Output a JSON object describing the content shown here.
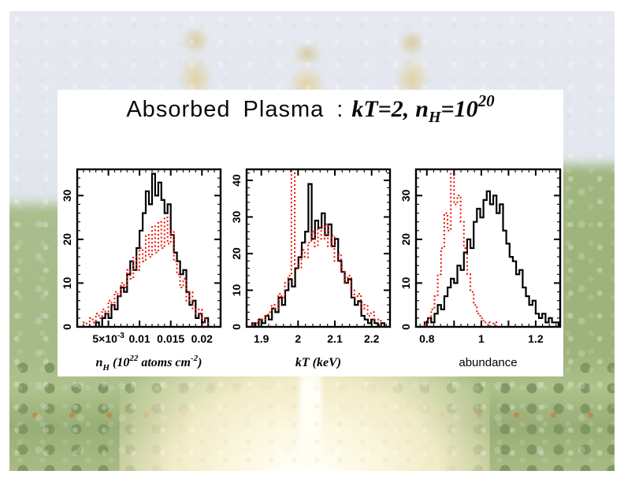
{
  "slide": {
    "title": {
      "prefix": "Absorbed Plasma :",
      "kt": "kT=2,",
      "n": "n",
      "n_sub": "H",
      "eq": "=10",
      "exp": "20"
    }
  },
  "colors": {
    "histogram_black": "#000000",
    "histogram_red": "#ee1100",
    "panel_background": "#ffffff"
  },
  "chart_data": [
    {
      "type": "histogram",
      "style": "step",
      "xlabel_text": "nH (10^22 atoms cm^-2)",
      "xlabel_style": "math",
      "xlabel_parts": [
        {
          "t": "n"
        },
        {
          "t": "H",
          "pos": "sub"
        },
        {
          "t": " (10"
        },
        {
          "t": "22",
          "pos": "sup"
        },
        {
          "t": " atoms cm"
        },
        {
          "t": "-2",
          "pos": "sup"
        },
        {
          "t": ")"
        }
      ],
      "xlim": [
        0,
        0.023
      ],
      "ylim": [
        0,
        36
      ],
      "grid": false,
      "legend": "none",
      "xticks": {
        "minor_step": 0.001,
        "major_step": 0.005,
        "labels": [
          {
            "v": 0.005,
            "main": "5×10",
            "sup": "-3"
          },
          {
            "v": 0.01,
            "main": "0.01"
          },
          {
            "v": 0.015,
            "main": "0.015"
          },
          {
            "v": 0.02,
            "main": "0.02"
          }
        ]
      },
      "yticks": {
        "minor_step": 2,
        "major_step": 10,
        "labels": [
          {
            "v": 0,
            "main": "0"
          },
          {
            "v": 10,
            "main": "10"
          },
          {
            "v": 20,
            "main": "20"
          },
          {
            "v": 30,
            "main": "30"
          }
        ]
      },
      "series": [
        {
          "name": "solid-black-histogram",
          "style": "solid",
          "color": "#000000",
          "x0": 0.0025,
          "dx": 0.0005,
          "values": [
            0,
            1,
            0,
            2,
            3,
            2,
            5,
            4,
            7,
            9,
            8,
            12,
            15,
            13,
            18,
            22,
            26,
            31,
            28,
            35,
            30,
            33,
            29,
            26,
            28,
            21,
            17,
            15,
            12,
            13,
            8,
            5,
            6,
            2,
            3,
            1,
            2,
            0
          ]
        },
        {
          "name": "dotted-red-histogram",
          "style": "dotted",
          "color": "#ee1100",
          "x0": 0.001,
          "dx": 0.0005,
          "values": [
            1,
            0,
            2,
            1,
            3,
            2,
            4,
            3,
            6,
            5,
            8,
            7,
            10,
            9,
            13,
            11,
            16,
            13,
            18,
            15,
            21,
            16,
            23,
            17,
            24,
            18,
            25,
            19,
            22,
            15,
            12,
            9,
            11,
            6,
            8,
            4,
            3,
            4,
            2,
            1
          ]
        }
      ]
    },
    {
      "type": "histogram",
      "style": "step",
      "xlabel_text": "kT (keV)",
      "xlabel_style": "math",
      "xlabel_parts": [
        {
          "t": "kT (keV)"
        }
      ],
      "xlim": [
        1.86,
        2.25
      ],
      "ylim": [
        0,
        43
      ],
      "grid": false,
      "legend": "none",
      "xticks": {
        "minor_step": 0.02,
        "major_step": 0.1,
        "labels": [
          {
            "v": 1.9,
            "main": "1.9"
          },
          {
            "v": 2.0,
            "main": "2"
          },
          {
            "v": 2.1,
            "main": "2.1"
          },
          {
            "v": 2.2,
            "main": "2.2"
          }
        ]
      },
      "yticks": {
        "minor_step": 2,
        "major_step": 10,
        "labels": [
          {
            "v": 0,
            "main": "0"
          },
          {
            "v": 10,
            "main": "10"
          },
          {
            "v": 20,
            "main": "20"
          },
          {
            "v": 30,
            "main": "30"
          },
          {
            "v": 40,
            "main": "40"
          }
        ]
      },
      "series": [
        {
          "name": "solid-black-histogram",
          "style": "solid",
          "color": "#000000",
          "x0": 1.875,
          "dx": 0.009,
          "values": [
            1,
            0,
            2,
            1,
            3,
            2,
            5,
            4,
            8,
            6,
            10,
            13,
            11,
            16,
            19,
            23,
            26,
            39,
            24,
            29,
            27,
            31,
            25,
            28,
            22,
            24,
            18,
            15,
            12,
            13,
            8,
            6,
            7,
            3,
            2,
            1,
            2,
            1,
            0,
            1
          ]
        },
        {
          "name": "dotted-red-histogram",
          "style": "dotted",
          "color": "#ee1100",
          "x0": 1.865,
          "dx": 0.009,
          "values": [
            0,
            1,
            1,
            2,
            2,
            3,
            4,
            6,
            5,
            9,
            8,
            12,
            14,
            45,
            17,
            16,
            21,
            19,
            23,
            26,
            22,
            27,
            24,
            28,
            22,
            25,
            18,
            20,
            15,
            12,
            14,
            10,
            8,
            9,
            5,
            6,
            3,
            4,
            2,
            2
          ]
        }
      ]
    },
    {
      "type": "histogram",
      "style": "step",
      "xlabel_text": "abundance",
      "xlabel_style": "plain",
      "xlabel_parts": [
        {
          "t": "abundance"
        }
      ],
      "xlim": [
        0.76,
        1.29
      ],
      "ylim": [
        0,
        36
      ],
      "grid": false,
      "legend": "none",
      "xticks": {
        "minor_step": 0.025,
        "major_step": 0.1,
        "labels": [
          {
            "v": 0.8,
            "main": "0.8"
          },
          {
            "v": 1.0,
            "main": "1"
          },
          {
            "v": 1.2,
            "main": "1.2"
          }
        ]
      },
      "yticks": {
        "minor_step": 2,
        "major_step": 10,
        "labels": [
          {
            "v": 0,
            "main": "0"
          },
          {
            "v": 10,
            "main": "10"
          },
          {
            "v": 20,
            "main": "20"
          },
          {
            "v": 30,
            "main": "30"
          }
        ]
      },
      "series": [
        {
          "name": "solid-black-histogram",
          "style": "solid",
          "color": "#000000",
          "x0": 0.78,
          "dx": 0.012,
          "values": [
            0,
            1,
            2,
            1,
            3,
            5,
            4,
            7,
            9,
            11,
            10,
            14,
            13,
            17,
            20,
            18,
            24,
            27,
            25,
            29,
            31,
            28,
            30,
            26,
            28,
            22,
            19,
            16,
            15,
            12,
            13,
            9,
            7,
            5,
            6,
            3,
            2,
            3,
            1,
            2,
            1,
            1
          ]
        },
        {
          "name": "dotted-red-histogram",
          "style": "dotted",
          "color": "#ee1100",
          "x0": 0.78,
          "dx": 0.012,
          "values": [
            0,
            1,
            2,
            4,
            7,
            12,
            18,
            26,
            22,
            35,
            28,
            30,
            24,
            18,
            12,
            8,
            5,
            3,
            2,
            1,
            1,
            0,
            1,
            0,
            0,
            0,
            0,
            0,
            0,
            0,
            0,
            0,
            0,
            0,
            0,
            0,
            0,
            0,
            0,
            0,
            0,
            0
          ]
        }
      ]
    }
  ]
}
